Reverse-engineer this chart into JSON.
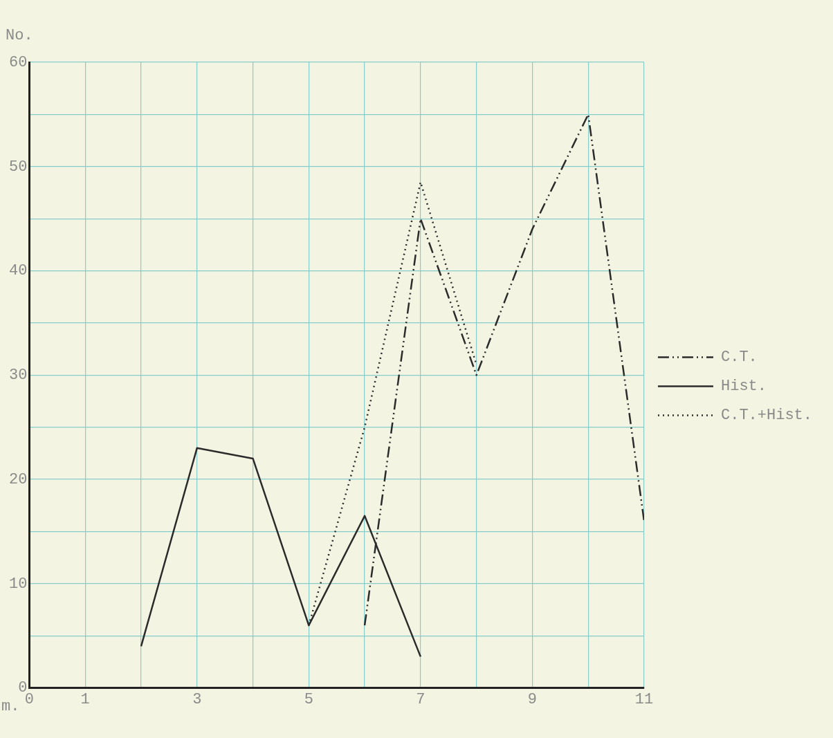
{
  "chart_data": {
    "type": "line",
    "xlabel": "m.",
    "ylabel": "No.",
    "series": [
      {
        "name": "C.T.",
        "color": "#2b2b2b",
        "line_style": "dashed",
        "x": [
          6,
          7,
          8,
          9,
          10,
          11
        ],
        "values": [
          6,
          45,
          30,
          44,
          55,
          16
        ]
      },
      {
        "name": "Hist.",
        "color": "#2b2b2b",
        "line_style": "solid",
        "x": [
          2,
          3,
          4,
          5,
          6,
          7
        ],
        "values": [
          4,
          23,
          22,
          6,
          16.5,
          3
        ]
      },
      {
        "name": "C.T.+Hist.",
        "color": "#2b2b2b",
        "line_style": "dotted",
        "x": [
          5,
          6,
          7,
          8
        ],
        "values": [
          6,
          25,
          48.5,
          31
        ]
      }
    ],
    "xlim": [
      0,
      11
    ],
    "xticks": [
      0,
      1,
      {
        "value": 2,
        "label": null
      },
      3,
      {
        "value": 4,
        "label": null
      },
      5,
      {
        "value": 6,
        "label": null
      },
      7,
      {
        "value": 8,
        "label": null
      },
      9,
      {
        "value": 10,
        "label": null
      },
      11
    ],
    "ylim": [
      0,
      60
    ],
    "yticks": [
      0,
      {
        "value": 5,
        "label": null
      },
      10,
      {
        "value": 15,
        "label": null
      },
      20,
      {
        "value": 25,
        "label": null
      },
      30,
      {
        "value": 35,
        "label": null
      },
      40,
      {
        "value": 45,
        "label": null
      },
      50,
      {
        "value": 55,
        "label": null
      },
      60
    ],
    "grid": true,
    "legend": "right",
    "marker": "none"
  }
}
